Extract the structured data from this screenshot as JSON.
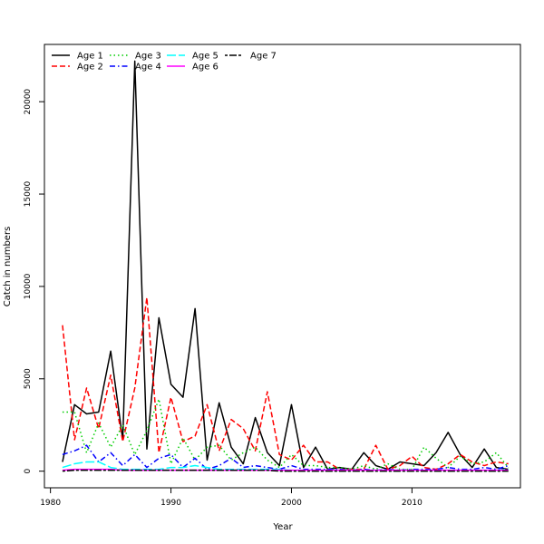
{
  "chart_data": {
    "type": "line",
    "title": "",
    "xlabel": "Year",
    "ylabel": "Catch in numbers",
    "xlim": [
      1979.5,
      2019
    ],
    "ylim": [
      -900,
      23100
    ],
    "x_ticks": [
      1980,
      1990,
      2000,
      2010
    ],
    "y_ticks": [
      0,
      5000,
      10000,
      15000,
      20000
    ],
    "x_tick_labels": [
      "1980",
      "1990",
      "2000",
      "2010"
    ],
    "y_tick_labels": [
      "0",
      "5000",
      "10000",
      "15000",
      "20000"
    ],
    "grid": false,
    "legend_position": "top-left",
    "x": [
      1981,
      1982,
      1983,
      1984,
      1985,
      1986,
      1987,
      1988,
      1989,
      1990,
      1991,
      1992,
      1993,
      1994,
      1995,
      1996,
      1997,
      1998,
      1999,
      2000,
      2001,
      2002,
      2003,
      2004,
      2005,
      2006,
      2007,
      2008,
      2009,
      2010,
      2011,
      2012,
      2013,
      2014,
      2015,
      2016,
      2017,
      2018
    ],
    "series": [
      {
        "name": "Age 1",
        "color": "#000000",
        "dash": "solid",
        "values": [
          500,
          3600,
          3100,
          3200,
          6500,
          1700,
          22200,
          1200,
          8300,
          4700,
          4000,
          8800,
          600,
          3700,
          1300,
          400,
          2900,
          1000,
          300,
          3600,
          200,
          1300,
          100,
          200,
          100,
          1000,
          300,
          100,
          500,
          400,
          300,
          1000,
          2100,
          900,
          200,
          1200,
          200,
          100
        ]
      },
      {
        "name": "Age 2",
        "color": "#ff0000",
        "dash": "dashed",
        "values": [
          7900,
          1700,
          4500,
          2300,
          5200,
          1600,
          4500,
          9400,
          1000,
          4000,
          1600,
          1900,
          3600,
          1100,
          2800,
          2300,
          1100,
          4300,
          900,
          600,
          1400,
          500,
          500,
          100,
          100,
          100,
          1400,
          100,
          300,
          800,
          200,
          100,
          400,
          900,
          500,
          300,
          500,
          400
        ]
      },
      {
        "name": "Age 3",
        "color": "#00cd00",
        "dash": "dotted",
        "values": [
          3200,
          3200,
          1000,
          2600,
          1300,
          2500,
          900,
          2200,
          3900,
          400,
          1800,
          600,
          1300,
          1400,
          600,
          1000,
          1300,
          600,
          200,
          900,
          300,
          300,
          200,
          200,
          100,
          300,
          100,
          400,
          100,
          100,
          1300,
          700,
          200,
          800,
          400,
          500,
          1000,
          200
        ]
      },
      {
        "name": "Age 4",
        "color": "#0000ff",
        "dash": "dashdot",
        "values": [
          900,
          1100,
          1400,
          500,
          1000,
          300,
          900,
          200,
          700,
          900,
          200,
          700,
          100,
          300,
          700,
          200,
          300,
          200,
          100,
          300,
          100,
          100,
          100,
          100,
          50,
          100,
          50,
          100,
          50,
          100,
          100,
          100,
          200,
          100,
          100,
          200,
          100,
          300
        ]
      },
      {
        "name": "Age 5",
        "color": "#00ffff",
        "dash": "longdash",
        "values": [
          200,
          400,
          500,
          500,
          200,
          100,
          100,
          100,
          100,
          200,
          200,
          300,
          200,
          100,
          100,
          100,
          100,
          100,
          100,
          50,
          50,
          50,
          50,
          50,
          50,
          50,
          50,
          50,
          50,
          50,
          50,
          50,
          50,
          50,
          50,
          50,
          50,
          100
        ]
      },
      {
        "name": "Age 6",
        "color": "#ff00ff",
        "dash": "solid",
        "values": [
          50,
          100,
          100,
          100,
          100,
          50,
          50,
          50,
          50,
          50,
          50,
          50,
          50,
          50,
          50,
          50,
          50,
          50,
          50,
          50,
          50,
          50,
          50,
          50,
          50,
          50,
          50,
          50,
          50,
          50,
          50,
          50,
          50,
          50,
          50,
          50,
          50,
          50
        ]
      },
      {
        "name": "Age 7",
        "color": "#000000",
        "dash": "twodash",
        "values": [
          0,
          50,
          50,
          50,
          50,
          50,
          50,
          50,
          50,
          50,
          50,
          50,
          50,
          50,
          50,
          50,
          50,
          50,
          0,
          0,
          0,
          0,
          0,
          0,
          0,
          0,
          0,
          0,
          0,
          0,
          0,
          0,
          0,
          0,
          0,
          0,
          0,
          0
        ]
      }
    ]
  }
}
